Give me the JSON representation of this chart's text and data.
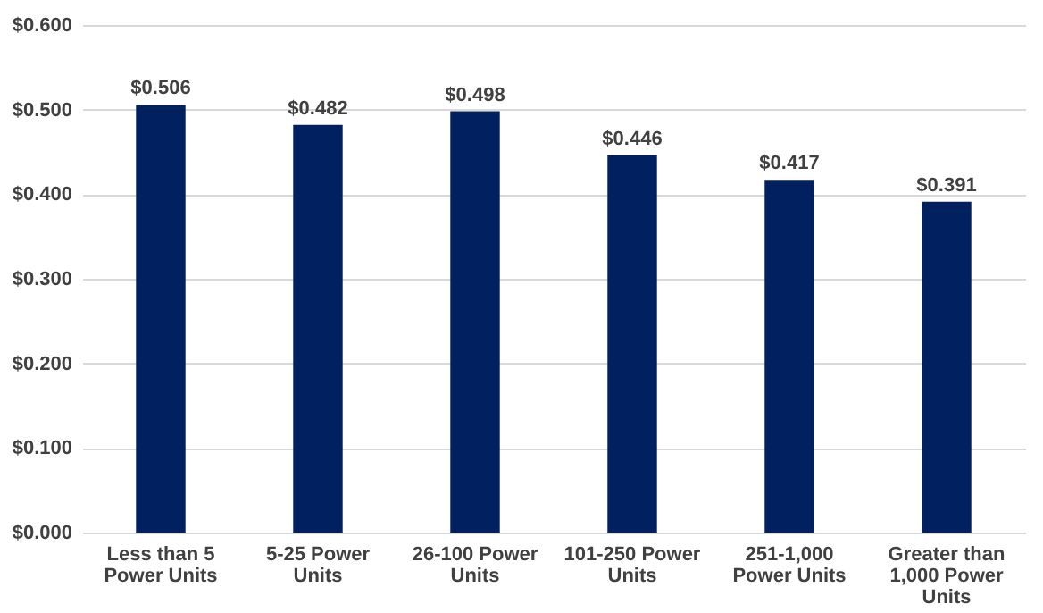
{
  "chart_data": {
    "type": "bar",
    "categories": [
      "Less than 5 Power Units",
      "5-25 Power Units",
      "26-100 Power Units",
      "101-250 Power Units",
      "251-1,000 Power Units",
      "Greater than 1,000 Power Units"
    ],
    "values": [
      0.506,
      0.482,
      0.498,
      0.446,
      0.417,
      0.391
    ],
    "color": "#002060",
    "value_labels": [
      "$0.506",
      "$0.482",
      "$0.498",
      "$0.446",
      "$0.417",
      "$0.391"
    ],
    "ylim": [
      0,
      0.6
    ],
    "yticks": [
      {
        "value": 0,
        "label": "$0.000"
      },
      {
        "value": 0.1,
        "label": "$0.100"
      },
      {
        "value": 0.2,
        "label": "$0.200"
      },
      {
        "value": 0.3,
        "label": "$0.300"
      },
      {
        "value": 0.4,
        "label": "$0.400"
      },
      {
        "value": 0.5,
        "label": "$0.500"
      },
      {
        "value": 0.6,
        "label": "$0.600"
      }
    ],
    "grid": "y"
  }
}
